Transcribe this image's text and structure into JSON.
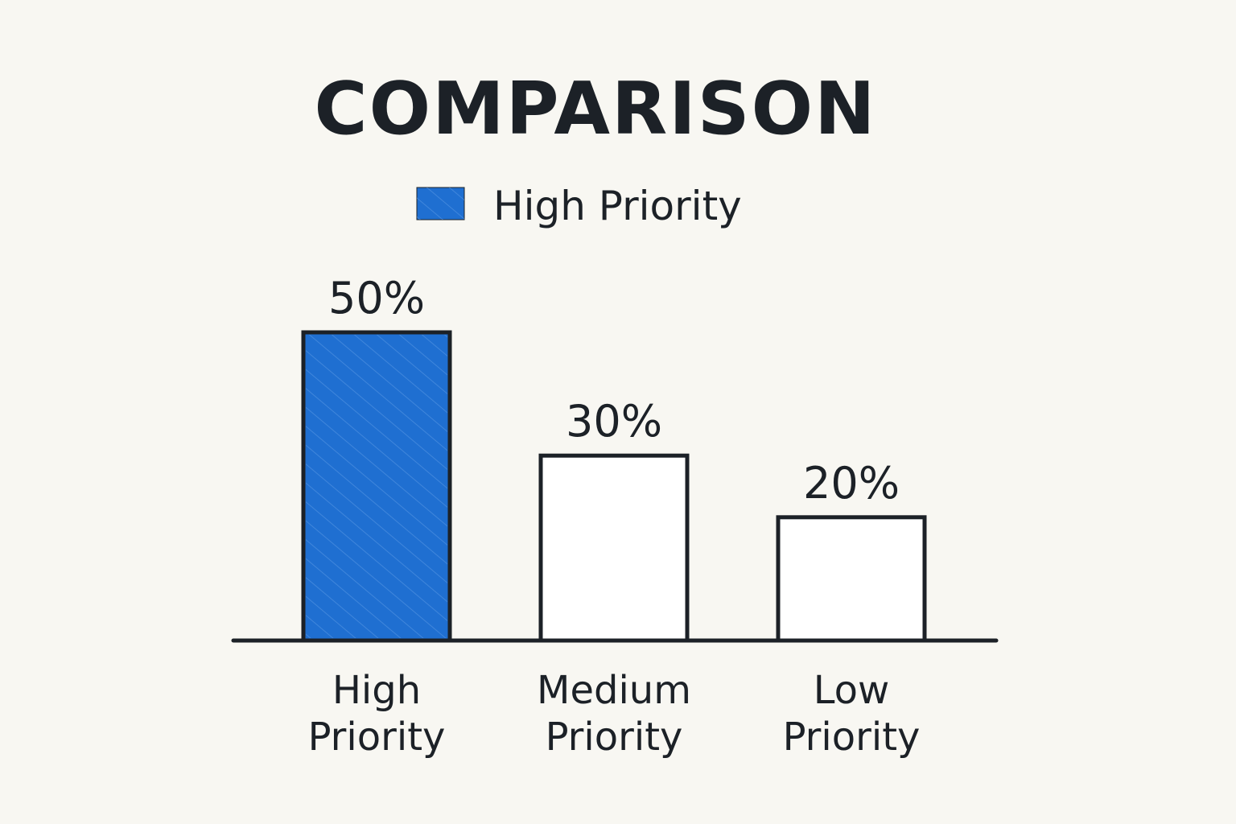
{
  "chart_data": {
    "type": "bar",
    "title": "COMPARISON",
    "legend": {
      "entries": [
        {
          "label": "High Priority",
          "color": "#1f6fd1"
        }
      ],
      "placement": "top"
    },
    "categories": [
      [
        "High",
        "Priority"
      ],
      [
        "Medium",
        "Priority"
      ],
      [
        "Low",
        "Priority"
      ]
    ],
    "values": [
      50,
      30,
      20
    ],
    "value_labels": [
      "50%",
      "30%",
      "20%"
    ],
    "unit": "%",
    "fills": [
      "#1f6fd1",
      "#ffffff",
      "#ffffff"
    ],
    "outline_color": "#1c2127",
    "ylim": [
      0,
      50
    ],
    "xlabel": "",
    "ylabel": "",
    "grid": false
  }
}
